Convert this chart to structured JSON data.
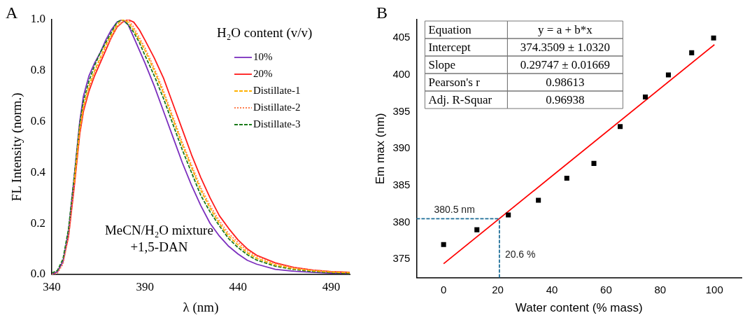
{
  "chart_data": [
    {
      "type": "line",
      "title": "A",
      "xlabel": "λ (nm)",
      "ylabel": "FL Intensity (norm.)",
      "legend_title": "H₂O content (v/v)",
      "x": [
        340,
        343,
        346,
        349,
        352,
        355,
        357,
        360,
        363,
        366,
        369,
        372,
        375,
        378,
        381,
        384,
        387,
        390,
        395,
        400,
        405,
        410,
        415,
        420,
        425,
        430,
        435,
        440,
        445,
        450,
        460,
        470,
        480,
        490,
        500
      ],
      "series": [
        {
          "name": "10%",
          "color": "#7b2fbe",
          "line_style": "solid",
          "values": [
            0,
            0.01,
            0.05,
            0.17,
            0.38,
            0.6,
            0.7,
            0.78,
            0.83,
            0.87,
            0.92,
            0.96,
            0.99,
            1.0,
            0.98,
            0.93,
            0.88,
            0.83,
            0.74,
            0.64,
            0.54,
            0.44,
            0.35,
            0.27,
            0.2,
            0.15,
            0.11,
            0.08,
            0.055,
            0.04,
            0.02,
            0.012,
            0.008,
            0.005,
            0.004
          ]
        },
        {
          "name": "20%",
          "color": "#ff1a1a",
          "line_style": "solid",
          "values": [
            0,
            0.01,
            0.05,
            0.15,
            0.34,
            0.55,
            0.64,
            0.72,
            0.78,
            0.83,
            0.88,
            0.93,
            0.97,
            0.99,
            1.0,
            0.99,
            0.96,
            0.92,
            0.85,
            0.77,
            0.67,
            0.57,
            0.47,
            0.38,
            0.3,
            0.23,
            0.18,
            0.135,
            0.1,
            0.075,
            0.045,
            0.027,
            0.017,
            0.011,
            0.008
          ]
        },
        {
          "name": "Distillate-1",
          "color": "#ffb000",
          "line_style": "dashed",
          "values": [
            null,
            null,
            null,
            null,
            0.36,
            0.57,
            0.66,
            0.74,
            0.8,
            0.85,
            0.9,
            0.94,
            0.98,
            1.0,
            0.99,
            0.96,
            0.92,
            0.88,
            0.8,
            0.71,
            0.61,
            0.51,
            0.42,
            0.33,
            0.26,
            0.2,
            0.15,
            0.115,
            0.085,
            0.063,
            0.037,
            0.022,
            0.014,
            0.009,
            0.006
          ]
        },
        {
          "name": "Distillate-2",
          "color": "#ff7f50",
          "line_style": "dotted",
          "values": [
            0,
            0.005,
            0.04,
            0.15,
            0.35,
            0.56,
            0.65,
            0.73,
            0.79,
            0.84,
            0.89,
            0.93,
            0.97,
            0.99,
            1.0,
            0.97,
            0.93,
            0.89,
            0.81,
            0.72,
            0.62,
            0.52,
            0.43,
            0.34,
            0.27,
            0.21,
            0.16,
            0.125,
            0.093,
            0.07,
            0.042,
            0.026,
            0.017,
            0.011,
            0.008
          ]
        },
        {
          "name": "Distillate-3",
          "color": "#1a7a1a",
          "line_style": "dashed",
          "values": [
            0.005,
            0.015,
            0.06,
            0.18,
            0.38,
            0.59,
            0.68,
            0.76,
            0.82,
            0.87,
            0.91,
            0.95,
            0.99,
            1.0,
            0.98,
            0.95,
            0.91,
            0.86,
            0.78,
            0.69,
            0.59,
            0.49,
            0.4,
            0.31,
            0.245,
            0.19,
            0.14,
            0.105,
            0.077,
            0.056,
            0.032,
            0.019,
            0.011,
            0.007,
            0.004
          ]
        }
      ],
      "xlim": [
        340,
        500
      ],
      "xticks": [
        340,
        390,
        440,
        490
      ],
      "ylim": [
        0,
        1.0
      ],
      "yticks": [
        {
          "value": 0,
          "label": "0.0"
        },
        0.2,
        0.4,
        0.6,
        0.8,
        {
          "value": 1,
          "label": "1.0"
        }
      ],
      "annotations": [
        "MeCN/H₂O mixture",
        "+1,5-DAN"
      ],
      "legend": "top right",
      "grid": false,
      "marker": "none"
    },
    {
      "type": "scatter",
      "title": "B",
      "xlabel": "Water content (% mass)",
      "ylabel": "Em max (nm)",
      "series": [
        {
          "color": "#000000",
          "marker": "square",
          "x": [
            0,
            12.3,
            23.9,
            35,
            45.5,
            55.5,
            65.2,
            74.5,
            83,
            91.6,
            99.7
          ],
          "values": [
            377,
            379,
            381,
            383,
            386,
            388,
            393,
            397,
            400,
            403,
            405
          ]
        },
        {
          "type": "line",
          "color": "#ff0000",
          "marker": "none",
          "x": [
            0,
            100
          ],
          "values": [
            374.4,
            404.1
          ]
        }
      ],
      "xlim": [
        -10,
        110
      ],
      "xticks": [
        0,
        20,
        40,
        60,
        80,
        100
      ],
      "ylim": [
        372.5,
        407.5
      ],
      "yticks": [
        375,
        380,
        385,
        390,
        395,
        400,
        405
      ],
      "ref_lines": [
        {
          "axis": "y",
          "value": 380.5,
          "label": "380.5 nm",
          "color": "#1f6f99",
          "line_style": "dashed"
        },
        {
          "axis": "x",
          "value": 20.6,
          "label": "20.6 %",
          "color": "#1f6f99",
          "line_style": "dashed"
        }
      ],
      "annotations": [
        "Equation",
        "y = a + b*x",
        "Intercept",
        "374.3509 ± 1.0320",
        "Slope",
        "0.29747 ± 0.01669",
        "Pearson's r",
        "0.98613",
        "Adj. R-Squar",
        "0.96938"
      ],
      "legend": false,
      "grid": false
    }
  ]
}
